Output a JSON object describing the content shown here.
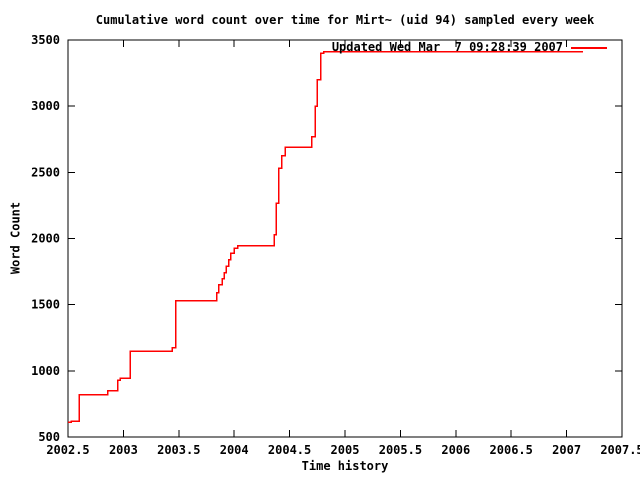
{
  "window": {
    "background": "#ffffff"
  },
  "chart_data": {
    "type": "line",
    "title": "Cumulative word count over time for Mirt~ (uid 94) sampled every week",
    "xlabel": "Time history",
    "ylabel": "Word Count",
    "xlim": [
      2002.5,
      2007.5
    ],
    "ylim": [
      500,
      3500
    ],
    "grid": false,
    "axis_color": "#000000",
    "text_color": "#000000",
    "x_ticks": [
      {
        "v": 2002.5,
        "label": "2002.5"
      },
      {
        "v": 2003,
        "label": "2003"
      },
      {
        "v": 2003.5,
        "label": "2003.5"
      },
      {
        "v": 2004,
        "label": "2004"
      },
      {
        "v": 2004.5,
        "label": "2004.5"
      },
      {
        "v": 2005,
        "label": "2005"
      },
      {
        "v": 2005.5,
        "label": "2005.5"
      },
      {
        "v": 2006,
        "label": "2006"
      },
      {
        "v": 2006.5,
        "label": "2006.5"
      },
      {
        "v": 2007,
        "label": "2007"
      },
      {
        "v": 2007.5,
        "label": "2007.5"
      }
    ],
    "y_ticks": [
      {
        "v": 500,
        "label": "500"
      },
      {
        "v": 1000,
        "label": "1000"
      },
      {
        "v": 1500,
        "label": "1500"
      },
      {
        "v": 2000,
        "label": "2000"
      },
      {
        "v": 2500,
        "label": "2500"
      },
      {
        "v": 3000,
        "label": "3000"
      },
      {
        "v": 3500,
        "label": "3500"
      }
    ],
    "legend": {
      "position": "top-right-inside",
      "label": "Updated Wed Mar  7 09:28:39 2007"
    },
    "series": [
      {
        "name": "Updated Wed Mar  7 09:28:39 2007",
        "color": "#ff0000",
        "style": "steps-post",
        "points": [
          [
            2002.5,
            610
          ],
          [
            2002.53,
            620
          ],
          [
            2002.6,
            820
          ],
          [
            2002.86,
            850
          ],
          [
            2002.95,
            930
          ],
          [
            2002.97,
            945
          ],
          [
            2003.06,
            1150
          ],
          [
            2003.44,
            1175
          ],
          [
            2003.47,
            1530
          ],
          [
            2003.84,
            1590
          ],
          [
            2003.86,
            1650
          ],
          [
            2003.89,
            1695
          ],
          [
            2003.91,
            1740
          ],
          [
            2003.93,
            1790
          ],
          [
            2003.95,
            1840
          ],
          [
            2003.97,
            1890
          ],
          [
            2004.0,
            1925
          ],
          [
            2004.03,
            1945
          ],
          [
            2004.36,
            2030
          ],
          [
            2004.38,
            2265
          ],
          [
            2004.4,
            2530
          ],
          [
            2004.43,
            2625
          ],
          [
            2004.46,
            2690
          ],
          [
            2004.7,
            2770
          ],
          [
            2004.73,
            3000
          ],
          [
            2004.75,
            3200
          ],
          [
            2004.78,
            3400
          ],
          [
            2004.81,
            3410
          ],
          [
            2007.15,
            3410
          ]
        ]
      }
    ]
  }
}
